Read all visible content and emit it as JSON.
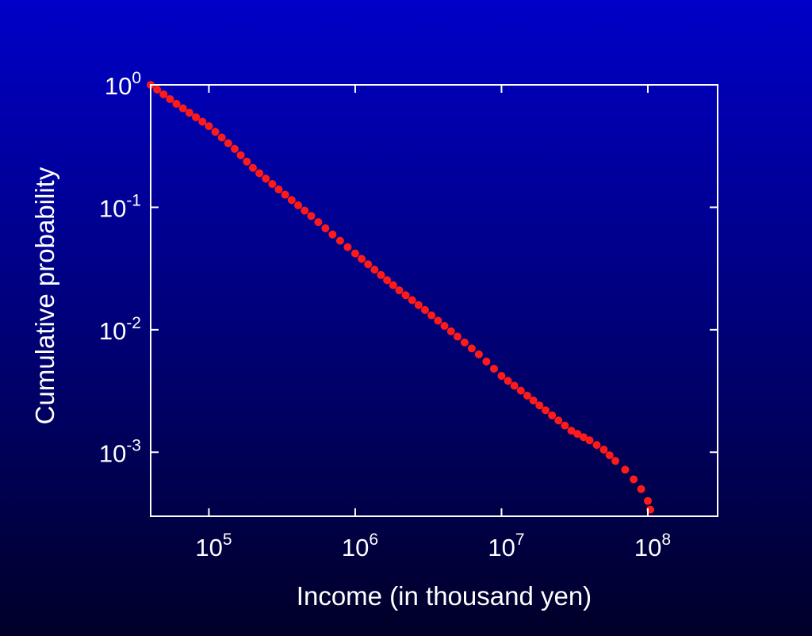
{
  "chart_data": {
    "type": "scatter",
    "title": "",
    "xlabel": "Income (in thousand yen)",
    "ylabel": "Cumulative probability",
    "x_scale": "log",
    "y_scale": "log",
    "xlim": [
      40000,
      300000000
    ],
    "ylim": [
      0.0003,
      1
    ],
    "grid": false,
    "legend": "none",
    "x_ticks": [
      {
        "value": 100000,
        "base": "10",
        "exp": "5"
      },
      {
        "value": 1000000,
        "base": "10",
        "exp": "6"
      },
      {
        "value": 10000000,
        "base": "10",
        "exp": "7"
      },
      {
        "value": 100000000,
        "base": "10",
        "exp": "8"
      }
    ],
    "y_ticks": [
      {
        "value": 1,
        "base": "10",
        "exp": "0"
      },
      {
        "value": 0.1,
        "base": "10",
        "exp": "-1"
      },
      {
        "value": 0.01,
        "base": "10",
        "exp": "-2"
      },
      {
        "value": 0.001,
        "base": "10",
        "exp": "-3"
      }
    ],
    "series": [
      {
        "color": "#ff1a1a",
        "points": [
          [
            40000,
            1.0
          ],
          [
            60000,
            0.7
          ],
          [
            100000,
            0.46
          ],
          [
            150000,
            0.3
          ],
          [
            200000,
            0.21
          ],
          [
            300000,
            0.14
          ],
          [
            500000,
            0.085
          ],
          [
            700000,
            0.06
          ],
          [
            1000000,
            0.042
          ],
          [
            1500000,
            0.028
          ],
          [
            2000000,
            0.021
          ],
          [
            3000000,
            0.0145
          ],
          [
            5000000,
            0.0088
          ],
          [
            7000000,
            0.0063
          ],
          [
            10000000,
            0.0042
          ],
          [
            15000000,
            0.0029
          ],
          [
            20000000,
            0.0022
          ],
          [
            30000000,
            0.0015
          ],
          [
            40000000,
            0.00125
          ],
          [
            50000000,
            0.00105
          ],
          [
            60000000,
            0.00085
          ],
          [
            70000000,
            0.00072
          ],
          [
            80000000,
            0.0006
          ],
          [
            90000000,
            0.0005
          ],
          [
            100000000,
            0.0004
          ],
          [
            104000000,
            0.00034
          ]
        ]
      }
    ]
  }
}
